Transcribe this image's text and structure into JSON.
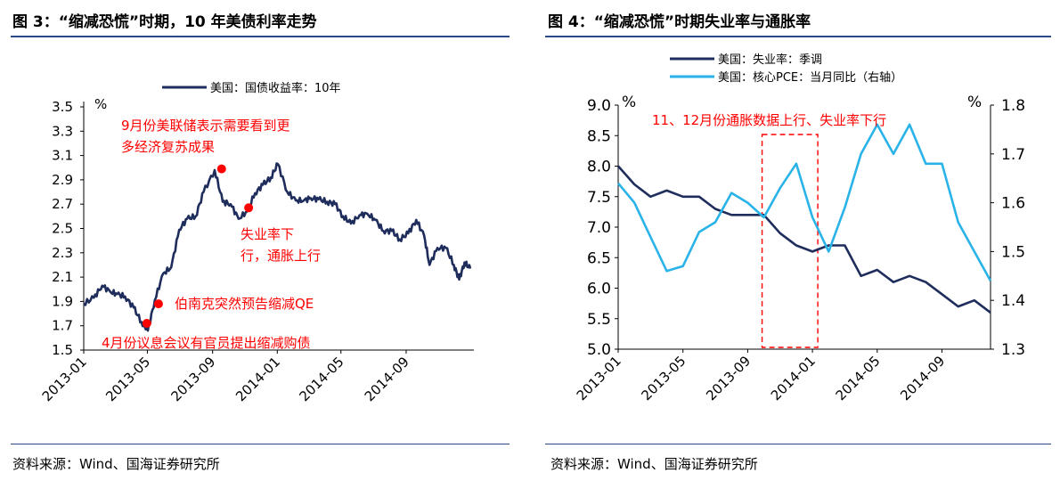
{
  "figures": {
    "left_title": "图 3：“缩减恐慌”时期，10 年美债利率走势",
    "right_title": "图 4：“缩减恐慌”时期失业率与通胀率",
    "left_source": "资料来源：Wind、国海证券研究所",
    "right_source": "资料来源：Wind、国海证券研究所"
  },
  "chart_data": [
    {
      "type": "line",
      "title": "图 3：“缩减恐慌”时期，10 年美债利率走势",
      "yunit": "%",
      "ylim": [
        1.5,
        3.5
      ],
      "yticks": [
        "1.5",
        "1.7",
        "1.9",
        "2.1",
        "2.3",
        "2.5",
        "2.7",
        "2.9",
        "3.1",
        "3.3",
        "3.5"
      ],
      "xlim": [
        "2013-01-01",
        "2014-12-31"
      ],
      "xticks": [
        "2013-01",
        "2013-05",
        "2013-09",
        "2014-01",
        "2014-05",
        "2014-09"
      ],
      "legend": "top",
      "color": "#1f2d5c",
      "series": [
        {
          "name": "美国：国债收益率：10年",
          "x": [
            "2013-01-01",
            "2013-01-20",
            "2013-02-05",
            "2013-02-20",
            "2013-03-05",
            "2013-03-20",
            "2013-04-05",
            "2013-04-20",
            "2013-05-02",
            "2013-05-15",
            "2013-05-31",
            "2013-06-15",
            "2013-06-30",
            "2013-07-15",
            "2013-07-31",
            "2013-08-15",
            "2013-09-05",
            "2013-09-20",
            "2013-10-05",
            "2013-10-20",
            "2013-11-05",
            "2013-11-20",
            "2013-12-05",
            "2013-12-20",
            "2014-01-02",
            "2014-01-20",
            "2014-02-05",
            "2014-02-20",
            "2014-03-05",
            "2014-03-20",
            "2014-04-05",
            "2014-04-20",
            "2014-05-05",
            "2014-05-20",
            "2014-06-05",
            "2014-06-20",
            "2014-07-05",
            "2014-07-20",
            "2014-08-05",
            "2014-08-20",
            "2014-09-05",
            "2014-09-20",
            "2014-10-05",
            "2014-10-15",
            "2014-10-30",
            "2014-11-15",
            "2014-11-30",
            "2014-12-10",
            "2014-12-20",
            "2014-12-31"
          ],
          "values": [
            1.88,
            1.93,
            2.03,
            1.98,
            1.96,
            1.94,
            1.85,
            1.73,
            1.66,
            1.91,
            2.13,
            2.18,
            2.49,
            2.58,
            2.6,
            2.8,
            2.98,
            2.72,
            2.7,
            2.58,
            2.64,
            2.79,
            2.86,
            2.92,
            3.03,
            2.8,
            2.73,
            2.73,
            2.75,
            2.74,
            2.72,
            2.7,
            2.6,
            2.54,
            2.61,
            2.62,
            2.57,
            2.48,
            2.48,
            2.41,
            2.46,
            2.57,
            2.44,
            2.2,
            2.34,
            2.34,
            2.2,
            2.08,
            2.22,
            2.17
          ]
        }
      ],
      "annotations": [
        {
          "text": "9月份美联储表示需要看到更多经济复苏成果",
          "x": "2013-09-18",
          "y": 2.99
        },
        {
          "text": "失业率下行，通胀上行",
          "x": "2013-11-08",
          "y": 2.67
        },
        {
          "text": "伯南克突然预告缩减QE",
          "x": "2013-05-22",
          "y": 1.88
        },
        {
          "text": "4月份议息会议有官员提出缩减购债",
          "x": "2013-04-30",
          "y": 1.72
        }
      ]
    },
    {
      "type": "line",
      "title": "图 4：“缩减恐慌”时期失业率与通胀率",
      "yunit_left": "%",
      "yunit_right": "%",
      "ylim_left": [
        5.0,
        9.0
      ],
      "yticks_left": [
        "5.0",
        "5.5",
        "6.0",
        "6.5",
        "7.0",
        "7.5",
        "8.0",
        "8.5",
        "9.0"
      ],
      "ylim_right": [
        1.3,
        1.8
      ],
      "yticks_right": [
        "1.3",
        "1.4",
        "1.5",
        "1.6",
        "1.7",
        "1.8"
      ],
      "xlim": [
        "2013-01",
        "2014-12"
      ],
      "xticks": [
        "2013-01",
        "2013-05",
        "2013-09",
        "2014-01",
        "2014-05",
        "2014-09"
      ],
      "legend": "top-left",
      "x": [
        "2013-01",
        "2013-02",
        "2013-03",
        "2013-04",
        "2013-05",
        "2013-06",
        "2013-07",
        "2013-08",
        "2013-09",
        "2013-10",
        "2013-11",
        "2013-12",
        "2014-01",
        "2014-02",
        "2014-03",
        "2014-04",
        "2014-05",
        "2014-06",
        "2014-07",
        "2014-08",
        "2014-09",
        "2014-10",
        "2014-11",
        "2014-12"
      ],
      "series": [
        {
          "name": "美国：失业率：季调",
          "axis": "left",
          "color": "#1f2d5c",
          "values": [
            8.0,
            7.7,
            7.5,
            7.6,
            7.5,
            7.5,
            7.3,
            7.2,
            7.2,
            7.2,
            6.9,
            6.7,
            6.6,
            6.7,
            6.7,
            6.2,
            6.3,
            6.1,
            6.2,
            6.1,
            5.9,
            5.7,
            5.8,
            5.6
          ]
        },
        {
          "name": "美国：核心PCE：当月同比（右轴）",
          "axis": "right",
          "color": "#29b3e8",
          "values": [
            1.64,
            1.6,
            1.53,
            1.46,
            1.47,
            1.54,
            1.56,
            1.62,
            1.6,
            1.57,
            1.63,
            1.68,
            1.57,
            1.5,
            1.59,
            1.7,
            1.76,
            1.7,
            1.76,
            1.68,
            1.68,
            1.56,
            1.5,
            1.44
          ]
        }
      ],
      "annotations": [
        {
          "text": "11、12月份通胀数据上行、失业率下行",
          "x": "2013-10",
          "y": 8.5
        }
      ]
    }
  ]
}
